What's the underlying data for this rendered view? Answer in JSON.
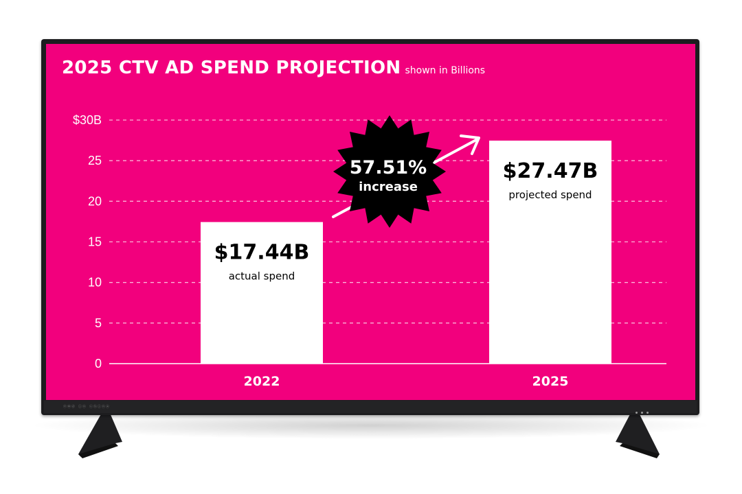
{
  "chart_data": {
    "type": "bar",
    "title": "2025 CTV AD SPEND PROJECTION",
    "subtitle": "shown in Billions",
    "categories": [
      "2022",
      "2025"
    ],
    "values": [
      17.44,
      27.47
    ],
    "value_labels": [
      "$17.44B",
      "$27.47B"
    ],
    "bar_descriptions": [
      "actual spend",
      "projected spend"
    ],
    "y_ticks": [
      "0",
      "5",
      "10",
      "15",
      "20",
      "25",
      "$30B"
    ],
    "y_tick_values": [
      0,
      5,
      10,
      15,
      20,
      25,
      30
    ],
    "ylim": [
      0,
      30
    ],
    "xlabel": "",
    "ylabel": "",
    "grid": true,
    "annotation": {
      "value": "57.51%",
      "label": "increase"
    }
  },
  "tv": {
    "model_text": "ⓔⓜⓓ ⓘⓝ ⓒⓗⓘⓝⓐ"
  },
  "colors": {
    "background": "#f2007d",
    "bar": "#ffffff",
    "text": "#ffffff",
    "badge": "#000000"
  }
}
